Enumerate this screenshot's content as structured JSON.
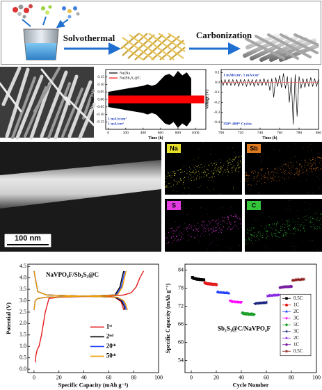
{
  "schematic": {
    "steps": [
      "Solvothermal",
      "Carbonization"
    ]
  },
  "tem": {
    "scale_bar": "100 nm"
  },
  "eds": {
    "maps": [
      {
        "label": "Na",
        "color": "#e6dc2a"
      },
      {
        "label": "Sb",
        "color": "#e07a20"
      },
      {
        "label": "S",
        "color": "#e23ce0"
      },
      {
        "label": "C",
        "color": "#33c43a"
      }
    ]
  },
  "chart_data": [
    {
      "type": "band",
      "ylabel": "Voltage (V)",
      "xlabel": "Time (h)",
      "xlim": [
        -30,
        1120
      ],
      "ylim": [
        -0.2,
        0.2
      ],
      "xticks": [
        0,
        200,
        400,
        600,
        800,
        1000
      ],
      "yticks": [
        -0.15,
        {
          "value": -0.1,
          "label": "-0.10"
        },
        -0.05,
        {
          "value": 0,
          "label": "0.00"
        },
        0.05,
        {
          "value": 0.1,
          "label": "0.10"
        },
        0.15
      ],
      "annotations": [
        "1 mA h/cm²",
        "1 mA/cm²"
      ],
      "annotation_color": "#1f3fbf",
      "legend": "top-left",
      "series": [
        {
          "name": "Na||Na",
          "color": "#000000",
          "x": [
            0,
            100,
            200,
            300,
            400,
            450,
            500,
            550,
            600,
            650,
            700,
            750,
            800,
            850,
            900,
            950
          ],
          "values": [
            0.05,
            0.06,
            0.07,
            0.08,
            0.09,
            0.1,
            0.09,
            0.1,
            0.13,
            0.16,
            0.17,
            0.15,
            0.19,
            0.16,
            0.18,
            0.14
          ]
        },
        {
          "name": "Na||Sb₂S₃@C",
          "color": "#ff0000",
          "x": [
            0,
            1100
          ],
          "values": [
            0.025,
            0.025
          ]
        }
      ]
    },
    {
      "type": "line",
      "ylabel": "Voltage (V)",
      "xlabel": "Time (h)",
      "xlim": [
        700,
        800
      ],
      "ylim": [
        -0.47,
        0.13
      ],
      "xticks": [
        700,
        720,
        740,
        760,
        780,
        800
      ],
      "yticks": [
        -0.4,
        -0.3,
        -0.2,
        -0.1,
        {
          "value": 0,
          "label": "0.0"
        },
        0.1
      ],
      "annotations": [
        "1 mAh/cm², 1 mA/cm²",
        "350ᵗʰ-400ᵗʰ Cycles"
      ],
      "annotation_color": "#1f3fbf",
      "series": [
        {
          "color": "#000000",
          "x": [
            700,
            702,
            704,
            706,
            708,
            710,
            712,
            714,
            716,
            718,
            720,
            722,
            724,
            726,
            728,
            730,
            732,
            734,
            736,
            738,
            740,
            742,
            744,
            746,
            748,
            750,
            752,
            754,
            756,
            758,
            760,
            762,
            764,
            766,
            768,
            770,
            772,
            774,
            776,
            778,
            780,
            782,
            784,
            786,
            788,
            790,
            792,
            794,
            796,
            798,
            800
          ],
          "values": [
            0.03,
            -0.03,
            0.03,
            -0.03,
            0.03,
            -0.03,
            0.03,
            -0.03,
            0.03,
            -0.04,
            0.03,
            -0.03,
            0.03,
            -0.04,
            0.03,
            -0.03,
            0.03,
            -0.04,
            0.03,
            -0.03,
            0.03,
            -0.03,
            0.04,
            -0.03,
            0.03,
            -0.08,
            0.04,
            -0.15,
            0.05,
            -0.04,
            0.07,
            -0.05,
            0.09,
            -0.06,
            0.06,
            -0.2,
            0.05,
            -0.42,
            0.08,
            -0.34,
            0.06,
            -0.06,
            0.04,
            -0.05,
            0.04,
            -0.04,
            0.05,
            -0.04,
            0.04,
            -0.04,
            0.04
          ]
        },
        {
          "color": "#ff6060",
          "x": [
            700,
            800
          ],
          "values": [
            0,
            0
          ]
        }
      ]
    },
    {
      "type": "line",
      "ylabel": "Potential (V)",
      "xlabel": "Specific Capacity (mAh g⁻¹)",
      "xlim": [
        -5,
        100
      ],
      "ylim": [
        -0.15,
        4.6
      ],
      "xticks": [
        0,
        20,
        40,
        60,
        80,
        100
      ],
      "yticks": [
        {
          "value": 0,
          "label": "0.0"
        },
        0.5,
        {
          "value": 1,
          "label": "1.0"
        },
        1.5,
        {
          "value": 2,
          "label": "2.0"
        },
        2.5,
        {
          "value": 3,
          "label": "3.0"
        },
        3.5,
        {
          "value": 4,
          "label": "4.0"
        },
        4.5
      ],
      "annotations": [
        "NaVPO₄F/Sb₂S₃@C"
      ],
      "annotation_color": "#000000",
      "legend": "center-right",
      "series": [
        {
          "name": "1ˢᵗ",
          "color": "#e41a1c",
          "x": [
            1,
            1.5,
            2.5,
            4,
            6,
            9,
            12,
            20,
            40,
            60,
            72,
            78,
            82,
            85,
            87,
            88,
            null,
            0,
            1,
            3,
            10,
            40,
            65,
            70,
            72
          ],
          "values": [
            0.3,
            0.6,
            0.85,
            1.0,
            1.5,
            2.5,
            3.1,
            3.15,
            3.18,
            3.2,
            3.25,
            3.35,
            3.6,
            4.0,
            4.2,
            4.3,
            null,
            4.3,
            4.0,
            3.4,
            3.25,
            3.2,
            3.15,
            2.95,
            2.6
          ]
        },
        {
          "name": "2ⁿᵈ",
          "color": "#000000",
          "x": [
            0,
            1,
            3,
            10,
            40,
            65,
            69,
            71,
            72,
            null,
            0,
            1,
            3,
            10,
            40,
            65,
            70,
            72,
            73
          ],
          "values": [
            2.6,
            3.0,
            3.1,
            3.15,
            3.2,
            3.25,
            3.6,
            4.1,
            4.3,
            null,
            4.3,
            4.0,
            3.4,
            3.25,
            3.2,
            3.15,
            3.0,
            2.8,
            2.6
          ]
        },
        {
          "name": "20ᵗʰ",
          "color": "#1f3fff",
          "x": [
            0,
            1,
            3,
            10,
            40,
            66,
            70,
            72,
            73,
            null,
            0,
            1,
            3,
            10,
            40,
            66,
            71,
            73,
            74
          ],
          "values": [
            2.6,
            3.0,
            3.1,
            3.15,
            3.2,
            3.25,
            3.6,
            4.1,
            4.3,
            null,
            4.3,
            4.0,
            3.4,
            3.25,
            3.2,
            3.15,
            3.0,
            2.8,
            2.6
          ]
        },
        {
          "name": "50ᵗʰ",
          "color": "#f0a000",
          "x": [
            0,
            1,
            3,
            10,
            40,
            67,
            71,
            73,
            74,
            null,
            0,
            1,
            3,
            10,
            40,
            67,
            72,
            74,
            75
          ],
          "values": [
            2.6,
            3.0,
            3.1,
            3.15,
            3.2,
            3.25,
            3.6,
            4.1,
            4.3,
            null,
            4.3,
            4.0,
            3.4,
            3.25,
            3.2,
            3.15,
            3.0,
            2.8,
            2.6
          ]
        }
      ]
    },
    {
      "type": "scatter",
      "ylabel": "Specific Capacity (mAh g⁻¹)",
      "xlabel": "Cycle Number",
      "xlim": [
        -5,
        100
      ],
      "ylim": [
        50,
        86
      ],
      "xticks": [
        0,
        20,
        40,
        60,
        80,
        100
      ],
      "yticks": [
        54,
        60,
        66,
        72,
        78,
        84
      ],
      "annotations": [
        "Sb₂S₃@C/NaVPO₄F"
      ],
      "annotation_color": "#000000",
      "legend": "center-right",
      "series": [
        {
          "name": "0.5C",
          "color": "#000000",
          "marker": "square",
          "x": [
            1,
            2,
            3,
            4,
            5,
            6,
            7,
            8,
            9,
            10
          ],
          "values": [
            81.6,
            81.3,
            81.2,
            81.1,
            81.0,
            81.0,
            80.9,
            80.9,
            80.8,
            80.8
          ]
        },
        {
          "name": "1C",
          "color": "#e41a1c",
          "marker": "circle",
          "x": [
            11,
            12,
            13,
            14,
            15,
            16,
            17,
            18,
            19,
            20
          ],
          "values": [
            79.8,
            79.6,
            79.5,
            79.5,
            79.4,
            79.4,
            79.3,
            79.3,
            79.3,
            79.2
          ]
        },
        {
          "name": "2C",
          "color": "#1f3fff",
          "marker": "triangle-up",
          "x": [
            21,
            22,
            23,
            24,
            25,
            26,
            27,
            28,
            29,
            30
          ],
          "values": [
            76.8,
            76.6,
            76.6,
            76.5,
            76.5,
            76.5,
            76.4,
            76.4,
            76.4,
            76.3
          ]
        },
        {
          "name": "3C",
          "color": "#ff00ff",
          "marker": "triangle-down",
          "x": [
            31,
            32,
            33,
            34,
            35,
            36,
            37,
            38,
            39,
            40
          ],
          "values": [
            73.9,
            73.7,
            73.6,
            73.6,
            73.5,
            73.5,
            73.5,
            73.4,
            73.4,
            73.4
          ]
        },
        {
          "name": "5C",
          "color": "#1aa02a",
          "marker": "diamond",
          "x": [
            41,
            42,
            43,
            44,
            45,
            46,
            47,
            48,
            49,
            50
          ],
          "values": [
            69.8,
            69.6,
            69.5,
            69.5,
            69.5,
            69.4,
            69.4,
            69.4,
            69.4,
            69.3
          ]
        },
        {
          "name": "3C",
          "color": "#1a237e",
          "marker": "triangle-left",
          "x": [
            51,
            52,
            53,
            54,
            55,
            56,
            57,
            58,
            59,
            60
          ],
          "values": [
            72.9,
            73.0,
            73.0,
            73.1,
            73.1,
            73.1,
            73.2,
            73.2,
            73.2,
            73.3
          ]
        },
        {
          "name": "2C",
          "color": "#8a2be2",
          "marker": "triangle-right",
          "x": [
            61,
            62,
            63,
            64,
            65,
            66,
            67,
            68,
            69,
            70
          ],
          "values": [
            75.4,
            75.5,
            75.6,
            75.6,
            75.6,
            75.7,
            75.7,
            75.7,
            75.7,
            75.8
          ]
        },
        {
          "name": "1C",
          "color": "#7b1fa2",
          "marker": "hexagon",
          "x": [
            71,
            72,
            73,
            74,
            75,
            76,
            77,
            78,
            79,
            80
          ],
          "values": [
            78.2,
            78.3,
            78.4,
            78.4,
            78.5,
            78.5,
            78.5,
            78.5,
            78.6,
            78.6
          ]
        },
        {
          "name": "0.5C",
          "color": "#8b1a1a",
          "marker": "star",
          "x": [
            81,
            82,
            83,
            84,
            85,
            86,
            87,
            88,
            89,
            90
          ],
          "values": [
            80.6,
            80.7,
            80.8,
            80.8,
            80.9,
            80.9,
            80.9,
            80.9,
            81.0,
            81.0
          ]
        }
      ]
    }
  ]
}
